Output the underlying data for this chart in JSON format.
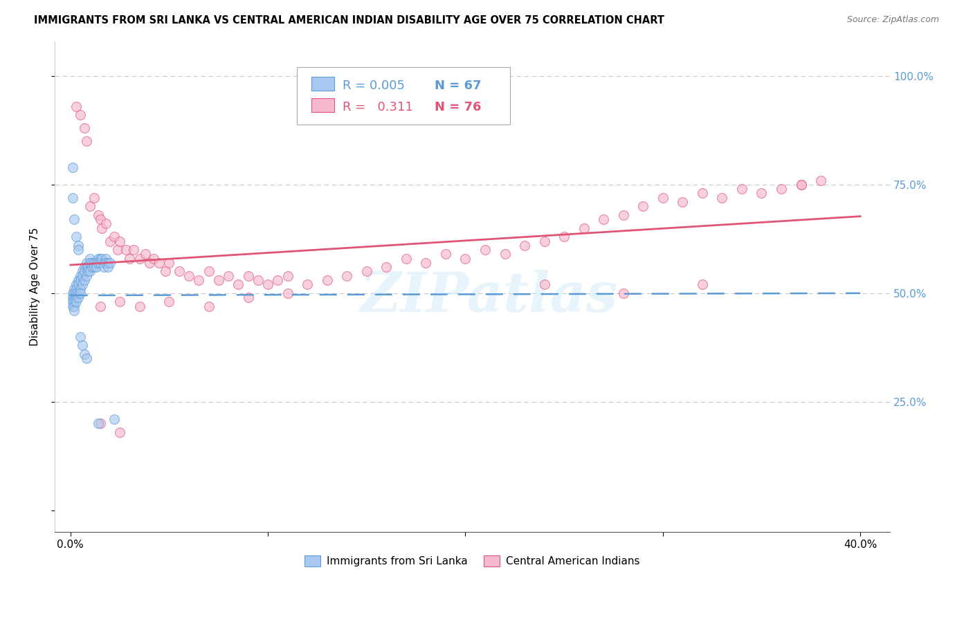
{
  "title": "IMMIGRANTS FROM SRI LANKA VS CENTRAL AMERICAN INDIAN DISABILITY AGE OVER 75 CORRELATION CHART",
  "source": "Source: ZipAtlas.com",
  "ylabel": "Disability Age Over 75",
  "series1_color": "#a8c8f0",
  "series2_color": "#f5b8cc",
  "line1_color": "#5b9bd5",
  "line2_color": "#e05577",
  "line1_dashed": true,
  "line2_dashed": false,
  "watermark": "ZIPatlas",
  "xlim": [
    0.0,
    0.4
  ],
  "ylim": [
    -0.05,
    1.08
  ],
  "x_ticks": [
    0.0,
    0.1,
    0.2,
    0.3,
    0.4
  ],
  "x_tick_labels": [
    "0.0%",
    "",
    "",
    "",
    "40.0%"
  ],
  "y_ticks": [
    0.0,
    0.25,
    0.5,
    0.75,
    1.0
  ],
  "y_tick_labels_right": [
    "",
    "25.0%",
    "50.0%",
    "75.0%",
    "100.0%"
  ],
  "legend_line1_r": "R = 0.005",
  "legend_line1_n": "N = 67",
  "legend_line2_r": "R =   0.311",
  "legend_line2_n": "N = 76",
  "title_fontsize": 10.5,
  "source_fontsize": 9,
  "tick_fontsize": 11,
  "legend_fontsize": 13,
  "ylabel_fontsize": 11,
  "scatter_size": 100,
  "scatter_alpha": 0.65,
  "sri_lanka_x": [
    0.001,
    0.001,
    0.001,
    0.001,
    0.002,
    0.002,
    0.002,
    0.002,
    0.002,
    0.002,
    0.003,
    0.003,
    0.003,
    0.003,
    0.003,
    0.004,
    0.004,
    0.004,
    0.004,
    0.005,
    0.005,
    0.005,
    0.005,
    0.006,
    0.006,
    0.006,
    0.007,
    0.007,
    0.007,
    0.008,
    0.008,
    0.008,
    0.009,
    0.009,
    0.01,
    0.01,
    0.01,
    0.011,
    0.011,
    0.012,
    0.012,
    0.013,
    0.013,
    0.014,
    0.014,
    0.015,
    0.015,
    0.016,
    0.017,
    0.017,
    0.018,
    0.018,
    0.019,
    0.019,
    0.02,
    0.001,
    0.001,
    0.002,
    0.003,
    0.004,
    0.004,
    0.005,
    0.006,
    0.007,
    0.008,
    0.014,
    0.022
  ],
  "sri_lanka_y": [
    0.5,
    0.49,
    0.48,
    0.47,
    0.51,
    0.5,
    0.49,
    0.48,
    0.47,
    0.46,
    0.52,
    0.51,
    0.5,
    0.49,
    0.48,
    0.53,
    0.52,
    0.5,
    0.49,
    0.54,
    0.53,
    0.51,
    0.5,
    0.55,
    0.54,
    0.52,
    0.56,
    0.55,
    0.53,
    0.57,
    0.56,
    0.54,
    0.56,
    0.55,
    0.58,
    0.57,
    0.55,
    0.57,
    0.56,
    0.57,
    0.56,
    0.57,
    0.56,
    0.58,
    0.57,
    0.58,
    0.57,
    0.58,
    0.57,
    0.56,
    0.58,
    0.57,
    0.57,
    0.56,
    0.57,
    0.79,
    0.72,
    0.67,
    0.63,
    0.61,
    0.6,
    0.4,
    0.38,
    0.36,
    0.35,
    0.2,
    0.21
  ],
  "central_american_x": [
    0.003,
    0.005,
    0.007,
    0.008,
    0.01,
    0.012,
    0.014,
    0.015,
    0.016,
    0.018,
    0.02,
    0.022,
    0.024,
    0.025,
    0.028,
    0.03,
    0.032,
    0.035,
    0.038,
    0.04,
    0.042,
    0.045,
    0.048,
    0.05,
    0.055,
    0.06,
    0.065,
    0.07,
    0.075,
    0.08,
    0.085,
    0.09,
    0.095,
    0.1,
    0.105,
    0.11,
    0.12,
    0.13,
    0.14,
    0.15,
    0.16,
    0.17,
    0.18,
    0.19,
    0.2,
    0.21,
    0.22,
    0.23,
    0.24,
    0.25,
    0.26,
    0.27,
    0.28,
    0.29,
    0.3,
    0.31,
    0.32,
    0.33,
    0.34,
    0.35,
    0.36,
    0.37,
    0.38,
    0.015,
    0.025,
    0.035,
    0.05,
    0.07,
    0.09,
    0.11,
    0.015,
    0.025,
    0.24,
    0.28,
    0.32,
    0.37
  ],
  "central_american_y": [
    0.93,
    0.91,
    0.88,
    0.85,
    0.7,
    0.72,
    0.68,
    0.67,
    0.65,
    0.66,
    0.62,
    0.63,
    0.6,
    0.62,
    0.6,
    0.58,
    0.6,
    0.58,
    0.59,
    0.57,
    0.58,
    0.57,
    0.55,
    0.57,
    0.55,
    0.54,
    0.53,
    0.55,
    0.53,
    0.54,
    0.52,
    0.54,
    0.53,
    0.52,
    0.53,
    0.54,
    0.52,
    0.53,
    0.54,
    0.55,
    0.56,
    0.58,
    0.57,
    0.59,
    0.58,
    0.6,
    0.59,
    0.61,
    0.62,
    0.63,
    0.65,
    0.67,
    0.68,
    0.7,
    0.72,
    0.71,
    0.73,
    0.72,
    0.74,
    0.73,
    0.74,
    0.75,
    0.76,
    0.47,
    0.48,
    0.47,
    0.48,
    0.47,
    0.49,
    0.5,
    0.2,
    0.18,
    0.52,
    0.5,
    0.52,
    0.75
  ]
}
